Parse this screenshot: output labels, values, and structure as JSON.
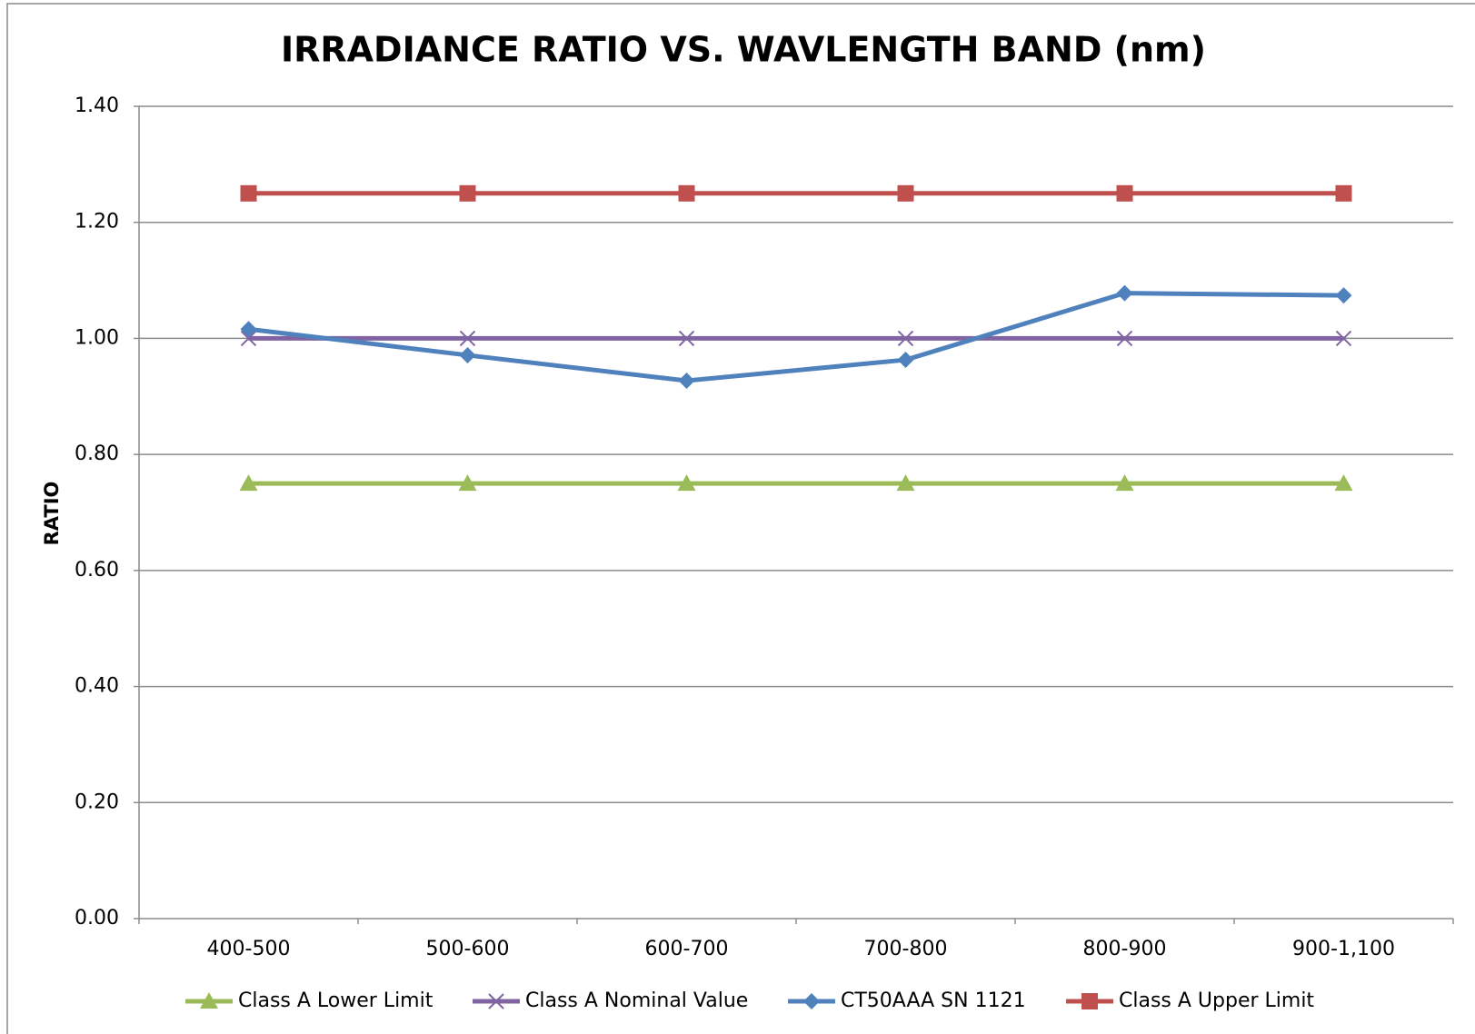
{
  "chart_data": {
    "type": "line",
    "title": "IRRADIANCE RATIO VS. WAVLENGTH BAND (nm)",
    "y_label": "RATIO",
    "categories": [
      "400-500",
      "500-600",
      "600-700",
      "700-800",
      "800-900",
      "900-1,100"
    ],
    "series": [
      {
        "name": "Class A Lower Limit",
        "color": "#9bbb59",
        "marker": "triangle",
        "values": [
          0.75,
          0.75,
          0.75,
          0.75,
          0.75,
          0.75
        ]
      },
      {
        "name": "Class A Nominal Value",
        "color": "#8064a2",
        "marker": "x",
        "values": [
          1.0,
          1.0,
          1.0,
          1.0,
          1.0,
          1.0
        ]
      },
      {
        "name": "CT50AAA SN 1121",
        "color": "#4f81bd",
        "marker": "diamond",
        "values": [
          1.016,
          0.971,
          0.927,
          0.963,
          1.078,
          1.074
        ]
      },
      {
        "name": "Class A Upper Limit",
        "color": "#c0504d",
        "marker": "square",
        "values": [
          1.25,
          1.25,
          1.25,
          1.25,
          1.25,
          1.25
        ]
      }
    ],
    "ylim": [
      0,
      1.4
    ],
    "yticks": [
      {
        "value": 0,
        "label": "0.00"
      },
      {
        "value": 0.2,
        "label": "0.20"
      },
      {
        "value": 0.4,
        "label": "0.40"
      },
      {
        "value": 0.6,
        "label": "0.60"
      },
      {
        "value": 0.8,
        "label": "0.80"
      },
      {
        "value": 1.0,
        "label": "1.00"
      },
      {
        "value": 1.2,
        "label": "1.20"
      },
      {
        "value": 1.4,
        "label": "1.40"
      }
    ],
    "grid": true,
    "legend": "bottom"
  }
}
